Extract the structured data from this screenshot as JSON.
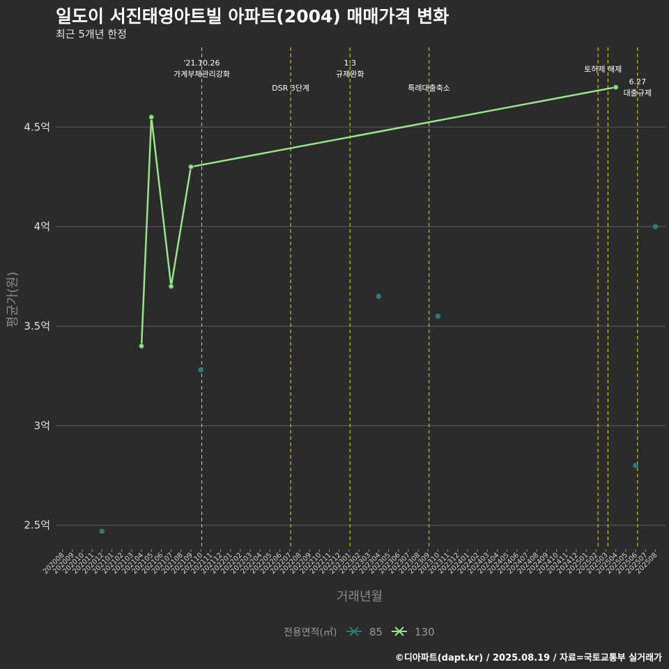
{
  "chart_data": {
    "type": "line",
    "title": "일도이 서진태영아트빌 아파트(2004) 매매가격 변화",
    "subtitle": "최근 5개년 한정",
    "xlabel": "거래년월",
    "ylabel": "평균가(원)",
    "caption": "©디아파트(dapt.kr) / 2025.08.19 / 자료=국토교통부 실거래가",
    "ylim": [
      2.38,
      4.9
    ],
    "yticks": [
      {
        "value": 2.5,
        "label": "2.5억"
      },
      {
        "value": 3.0,
        "label": "3억"
      },
      {
        "value": 3.5,
        "label": "3.5억"
      },
      {
        "value": 4.0,
        "label": "4억"
      },
      {
        "value": 4.5,
        "label": "4.5억"
      }
    ],
    "categories": [
      "202008",
      "202009",
      "202010",
      "202011",
      "202012",
      "202101",
      "202102",
      "202103",
      "202104",
      "202105",
      "202106",
      "202107",
      "202108",
      "202109",
      "202110",
      "202111",
      "202112",
      "202201",
      "202202",
      "202203",
      "202204",
      "202205",
      "202206",
      "202207",
      "202208",
      "202209",
      "202210",
      "202211",
      "202212",
      "202301",
      "202302",
      "202303",
      "202304",
      "202305",
      "202306",
      "202307",
      "202308",
      "202309",
      "202310",
      "202311",
      "202312",
      "202401",
      "202402",
      "202403",
      "202404",
      "202405",
      "202406",
      "202407",
      "202408",
      "202409",
      "202410",
      "202411",
      "202412",
      "202501",
      "202502",
      "202503",
      "202504",
      "202505",
      "202506",
      "202507",
      "202508"
    ],
    "legend": {
      "title": "전용면적(㎡)",
      "position": "bottom"
    },
    "series": [
      {
        "name": "85",
        "color": "#2a7f74",
        "mode": "points",
        "points": [
          {
            "x": "202012",
            "y": 2.47
          },
          {
            "x": "202110",
            "y": 3.28
          },
          {
            "x": "202304",
            "y": 3.65
          },
          {
            "x": "202310",
            "y": 3.55
          },
          {
            "x": "202506",
            "y": 2.8
          },
          {
            "x": "202508",
            "y": 4.0
          }
        ]
      },
      {
        "name": "130",
        "color": "#98e68a",
        "mode": "line",
        "points": [
          {
            "x": "202104",
            "y": 3.4
          },
          {
            "x": "202105",
            "y": 4.55
          },
          {
            "x": "202107",
            "y": 3.7
          },
          {
            "x": "202109",
            "y": 4.3
          },
          {
            "x": "202504",
            "y": 4.7
          }
        ]
      }
    ],
    "events": [
      {
        "x": 14.1,
        "lines": [
          "'21.10.26",
          "가계부채관리강화"
        ],
        "row": 0
      },
      {
        "x": 23.1,
        "lines": [
          "DSR 3단계"
        ],
        "row": 2
      },
      {
        "x": 29.1,
        "lines": [
          "1.3",
          "규제완화"
        ],
        "row": 0
      },
      {
        "x": 37.1,
        "lines": [
          "특례대출축소"
        ],
        "row": 2
      },
      {
        "x": 54.2,
        "lines": [],
        "row": 0
      },
      {
        "x": 55.2,
        "lines": [
          "토허제 해제"
        ],
        "row": 1,
        "anchor_x": 54.7
      },
      {
        "x": 58.2,
        "lines": [
          "6.27",
          "대출규제"
        ],
        "row": 3
      }
    ]
  }
}
